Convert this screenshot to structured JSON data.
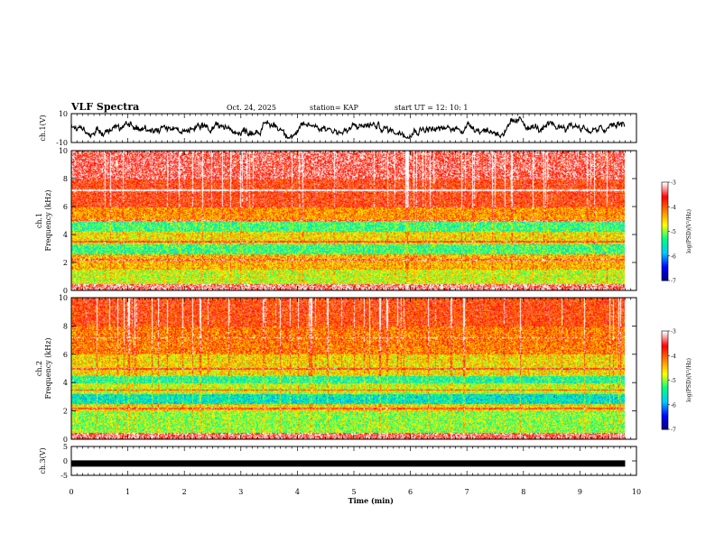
{
  "header": {
    "title": "VLF Spectra",
    "date": "Oct. 24, 2025",
    "station": "station= KAP",
    "start": "start  UT  =    12: 10: 1"
  },
  "colors": {
    "background": "#ffffff",
    "trace": "#000000",
    "colormap": [
      "#000080",
      "#0000ff",
      "#00c8ff",
      "#00ff80",
      "#ffff00",
      "#ff8000",
      "#ff0000",
      "#ffffff"
    ]
  },
  "chart_data": [
    {
      "id": "ch1-voltage",
      "type": "line",
      "ylabel": "ch.1(V)",
      "ylim": [
        -10,
        10
      ],
      "yticks": [
        "10",
        "-10"
      ],
      "series": [
        {
          "name": "ch.1",
          "description": "noisy waveform fluctuating roughly between -6 and 8 V"
        }
      ]
    },
    {
      "id": "ch1-spectrogram",
      "type": "heatmap",
      "ylabel": "ch.1\nFrequency (kHz)",
      "ylabel_lines": [
        "ch.1",
        "Frequency (kHz)"
      ],
      "ylim": [
        0,
        10
      ],
      "yticks": [
        "0",
        "2",
        "4",
        "6",
        "8",
        "10"
      ],
      "x_range_min": [
        0,
        10
      ],
      "colorbar": {
        "label": "log(PSD)(V²/Hz)",
        "range": [
          -7,
          -3
        ],
        "ticks": [
          "-3",
          "-4",
          "-5",
          "-6",
          "-7"
        ]
      },
      "bands": [
        {
          "freq_khz": [
            0,
            0.5
          ],
          "log_psd": -3.3
        },
        {
          "freq_khz": [
            0.5,
            1.5
          ],
          "log_psd": -4.8
        },
        {
          "freq_khz": [
            1.5,
            2.6
          ],
          "log_psd": -4.4
        },
        {
          "freq_khz": [
            2.6,
            3.3
          ],
          "log_psd": -5.3
        },
        {
          "freq_khz": [
            3.3,
            4.2
          ],
          "log_psd": -4.6
        },
        {
          "freq_khz": [
            4.2,
            5.0
          ],
          "log_psd": -5.3
        },
        {
          "freq_khz": [
            5.0,
            6.0
          ],
          "log_psd": -4.3
        },
        {
          "freq_khz": [
            6.0,
            8.0
          ],
          "log_psd": -3.8
        },
        {
          "freq_khz": [
            8.0,
            10.0
          ],
          "log_psd": -3.5
        }
      ]
    },
    {
      "id": "ch2-spectrogram",
      "type": "heatmap",
      "ylabel": "ch.2\nFrequency (kHz)",
      "ylabel_lines": [
        "ch.2",
        "Frequency (kHz)"
      ],
      "ylim": [
        0,
        10
      ],
      "yticks": [
        "0",
        "2",
        "4",
        "6",
        "8",
        "10"
      ],
      "x_range_min": [
        0,
        10
      ],
      "colorbar": {
        "label": "log(PSD)(V²/Hz)",
        "range": [
          -7,
          -3
        ],
        "ticks": [
          "-3",
          "-4",
          "-5",
          "-6",
          "-7"
        ]
      },
      "bands": [
        {
          "freq_khz": [
            0,
            0.5
          ],
          "log_psd": -3.4
        },
        {
          "freq_khz": [
            0.5,
            2.0
          ],
          "log_psd": -5.0
        },
        {
          "freq_khz": [
            2.0,
            2.5
          ],
          "log_psd": -4.6
        },
        {
          "freq_khz": [
            2.5,
            3.2
          ],
          "log_psd": -5.6
        },
        {
          "freq_khz": [
            3.2,
            4.0
          ],
          "log_psd": -4.8
        },
        {
          "freq_khz": [
            4.0,
            4.5
          ],
          "log_psd": -5.4
        },
        {
          "freq_khz": [
            4.5,
            6.0
          ],
          "log_psd": -4.6
        },
        {
          "freq_khz": [
            6.0,
            8.0
          ],
          "log_psd": -4.2
        },
        {
          "freq_khz": [
            8.0,
            10.0
          ],
          "log_psd": -3.9
        }
      ]
    },
    {
      "id": "ch3-voltage",
      "type": "line",
      "ylabel": "ch.3(V)",
      "ylim": [
        -5,
        5
      ],
      "yticks": [
        "5",
        "0",
        "-5"
      ],
      "series": [
        {
          "name": "ch.3",
          "values": [
            -0.9,
            -0.9
          ],
          "description": "flat thick band near -0.9 V"
        }
      ]
    }
  ],
  "xaxis": {
    "label": "Time  (min)",
    "range": [
      0,
      10
    ],
    "ticks": [
      "0",
      "1",
      "2",
      "3",
      "4",
      "5",
      "6",
      "7",
      "8",
      "9",
      "10"
    ],
    "data_end_min": 9.8
  }
}
